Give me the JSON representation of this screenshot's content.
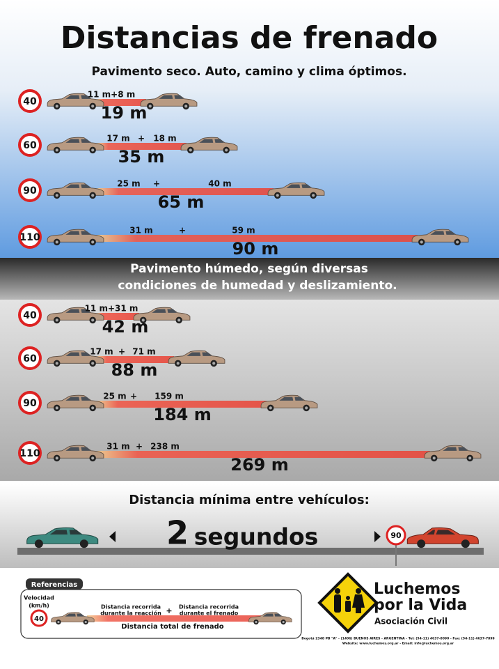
{
  "title": "Distancias de frenado",
  "dry": {
    "subtitle": "Pavimento seco. Auto, camino y clima óptimos.",
    "rows": [
      {
        "speed": "40",
        "distances": "11 m+8 m",
        "total": "19 m"
      },
      {
        "speed": "60",
        "reaction": "17 m",
        "plus": "+",
        "braking": "18 m",
        "total": "35 m"
      },
      {
        "speed": "90",
        "reaction": "25 m",
        "plus": "+",
        "braking": "40 m",
        "total": "65 m"
      },
      {
        "speed": "110",
        "reaction": "31 m",
        "plus": "+",
        "braking": "59 m",
        "total": "90 m"
      }
    ]
  },
  "wet": {
    "subtitle_lines": [
      "Pavimento húmedo, según diversas",
      "condiciones de humedad y deslizamiento."
    ],
    "rows": [
      {
        "speed": "40",
        "distances": "11 m+31 m",
        "total": "42 m"
      },
      {
        "speed": "60",
        "reaction": "17 m",
        "plus": "+",
        "braking": "71 m",
        "total": "88 m"
      },
      {
        "speed": "90",
        "reaction": "25 m",
        "plus": "+",
        "braking": "159 m",
        "total": "184 m"
      },
      {
        "speed": "110",
        "reaction": "31 m",
        "plus": "+",
        "braking": "238 m",
        "total": "269 m"
      }
    ]
  },
  "gap": {
    "heading": "Distancia mínima entre vehículos:",
    "number": "2",
    "unit": "segundos",
    "sign": "90"
  },
  "references": {
    "title": "Referencias",
    "speed_label_lines": [
      "Velocidad",
      "(km/h)"
    ],
    "speed": "40",
    "reaction_lines": [
      "Distancia recorrida",
      "durante la reacción"
    ],
    "plus": "+",
    "braking_lines": [
      "Distancia recorrida",
      "durante el frenado"
    ],
    "total": "Distancia total de frenado"
  },
  "logo": {
    "name_lines": [
      "Luchemos",
      "por la Vida"
    ],
    "subtitle": "Asociación Civil",
    "address_lines": [
      "Bogotá 2348 PB \"A\" - (1406) BUENOS AIRES - ARGENTINA - Tel: (54-11) 4637-8090 - Fax: (54-11) 4637-7899",
      "Website: www.luchemos.org.ar - Email: info@luchemos.org.ar"
    ]
  }
}
